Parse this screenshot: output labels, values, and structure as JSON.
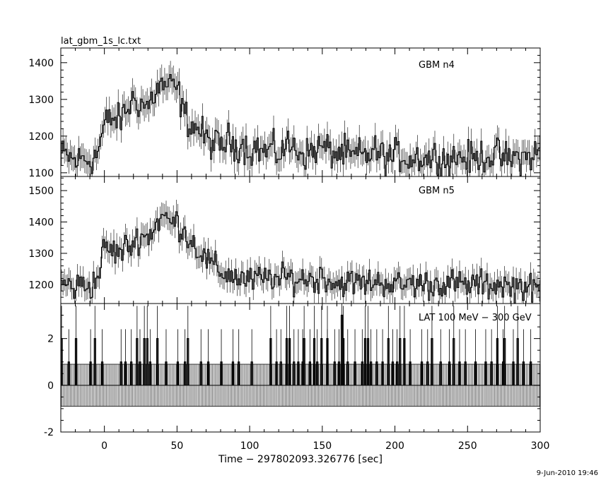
{
  "chart_data": {
    "type": "line",
    "file_title": "lat_gbm_1s_lc.txt",
    "xlabel": "Time − 297802093.326776 [sec]",
    "xlim": [
      -30,
      300
    ],
    "xticks": [
      0,
      50,
      100,
      150,
      200,
      250,
      300
    ],
    "timestamp": "9-Jun-2010 19:46",
    "panels": [
      {
        "name": "GBM n4",
        "ylim": [
          1090,
          1440
        ],
        "yticks": [
          1100,
          1200,
          1300,
          1400
        ],
        "series": {
          "name": "GBM n4",
          "x": [
            -30,
            -25,
            -20,
            -15,
            -10,
            -5,
            0,
            5,
            10,
            15,
            20,
            25,
            30,
            35,
            40,
            45,
            50,
            55,
            60,
            65,
            70,
            75,
            80,
            85,
            90,
            95,
            100,
            105,
            110,
            115,
            120,
            125,
            130,
            135,
            140,
            145,
            150,
            155,
            160,
            165,
            170,
            175,
            180,
            185,
            190,
            195,
            200,
            205,
            210,
            215,
            220,
            225,
            230,
            235,
            240,
            245,
            250,
            255,
            260,
            265,
            270,
            275,
            280,
            285,
            290,
            295,
            300
          ],
          "y": [
            1150,
            1145,
            1130,
            1140,
            1135,
            1150,
            1230,
            1250,
            1240,
            1270,
            1300,
            1290,
            1280,
            1320,
            1340,
            1335,
            1330,
            1260,
            1230,
            1220,
            1190,
            1180,
            1170,
            1190,
            1175,
            1180,
            1160,
            1170,
            1155,
            1165,
            1150,
            1175,
            1170,
            1160,
            1150,
            1165,
            1170,
            1160,
            1150,
            1155,
            1140,
            1150,
            1145,
            1160,
            1150,
            1140,
            1145,
            1150,
            1135,
            1145,
            1140,
            1140,
            1150,
            1135,
            1140,
            1145,
            1140,
            1135,
            1150,
            1145,
            1150,
            1140,
            1135,
            1145,
            1140,
            1150,
            1155
          ]
        }
      },
      {
        "name": "GBM n5",
        "ylim": [
          1140,
          1545
        ],
        "yticks": [
          1200,
          1300,
          1400,
          1500
        ],
        "series": {
          "name": "GBM n5",
          "x": [
            -30,
            -25,
            -20,
            -15,
            -10,
            -5,
            0,
            5,
            10,
            15,
            20,
            25,
            30,
            35,
            40,
            45,
            50,
            55,
            60,
            65,
            70,
            75,
            80,
            85,
            90,
            95,
            100,
            105,
            110,
            115,
            120,
            125,
            130,
            135,
            140,
            145,
            150,
            155,
            160,
            165,
            170,
            175,
            180,
            185,
            190,
            195,
            200,
            205,
            210,
            215,
            220,
            225,
            230,
            235,
            240,
            245,
            250,
            255,
            260,
            265,
            270,
            275,
            280,
            285,
            290,
            295,
            300
          ],
          "y": [
            1210,
            1200,
            1190,
            1205,
            1195,
            1215,
            1320,
            1310,
            1300,
            1320,
            1330,
            1360,
            1350,
            1390,
            1420,
            1400,
            1400,
            1370,
            1340,
            1310,
            1280,
            1260,
            1240,
            1235,
            1225,
            1220,
            1210,
            1220,
            1215,
            1230,
            1210,
            1225,
            1220,
            1215,
            1225,
            1210,
            1230,
            1215,
            1200,
            1210,
            1205,
            1210,
            1200,
            1215,
            1205,
            1210,
            1200,
            1195,
            1210,
            1200,
            1205,
            1195,
            1210,
            1200,
            1205,
            1200,
            1195,
            1205,
            1200,
            1195,
            1205,
            1200,
            1190,
            1200,
            1195,
            1185,
            1180
          ]
        }
      },
      {
        "name": "LAT 100 MeV − 300 GeV",
        "ylim": [
          -2,
          3.5
        ],
        "yticks": [
          -2,
          0,
          2
        ],
        "baseline_value": 0,
        "errorbar_value": 0.9,
        "bin_width": 1,
        "single_count_value": 1,
        "double_count_value": 2,
        "triple_count_value": 3,
        "single_count_times": [
          -25,
          -10,
          -2,
          11,
          14,
          18,
          24,
          31,
          42,
          50,
          55,
          66,
          71,
          80,
          88,
          92,
          101,
          118,
          121,
          130,
          133,
          136,
          141,
          146,
          153,
          158,
          161,
          167,
          172,
          177,
          183,
          187,
          191,
          198,
          201,
          210,
          218,
          222,
          231,
          237,
          244,
          248,
          255,
          262,
          266,
          274,
          281,
          288,
          293
        ],
        "double_count_times": [
          -30,
          -20,
          -7,
          22,
          27,
          29,
          36,
          57,
          114,
          125,
          127,
          137,
          144,
          149,
          153,
          164,
          179,
          181,
          195,
          203,
          206,
          225,
          240,
          270,
          275,
          284
        ],
        "triple_count_times": [
          163
        ]
      }
    ]
  }
}
